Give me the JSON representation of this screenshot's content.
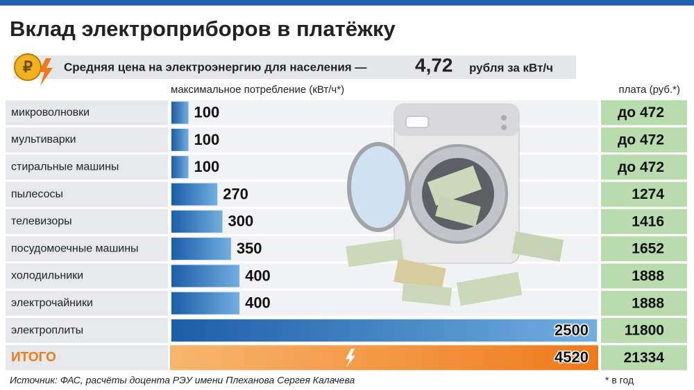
{
  "chart_data": {
    "type": "bar",
    "title": "Вклад электроприборов в платёжку",
    "subtitle": "Средняя цена на электроэнергию для населения —",
    "price": "4,72",
    "price_unit": "рубля за кВт/ч",
    "value_axis_label": "максимальное потребление (кВт/ч*)",
    "payment_header": "плата (руб.*)",
    "categories": [
      "микроволновки",
      "мультиварки",
      "стиральные машины",
      "пылесосы",
      "телевизоры",
      "посудомоечные машины",
      "холодильники",
      "электрочайники",
      "электроплиты"
    ],
    "values": [
      100,
      100,
      100,
      270,
      300,
      350,
      400,
      400,
      2500
    ],
    "payments": [
      "до 472",
      "до 472",
      "до 472",
      "1274",
      "1416",
      "1652",
      "1888",
      "1888",
      "11800"
    ],
    "color": "#1f63ad",
    "xlim": [
      0,
      2500
    ],
    "total": {
      "label": "ИТОГО",
      "value": 4520,
      "payment": "21334"
    },
    "source": "Источник: ФАС, расчёты доцента РЭУ имени Плеханова  Сергея Калачева",
    "footnote": "* в год"
  }
}
